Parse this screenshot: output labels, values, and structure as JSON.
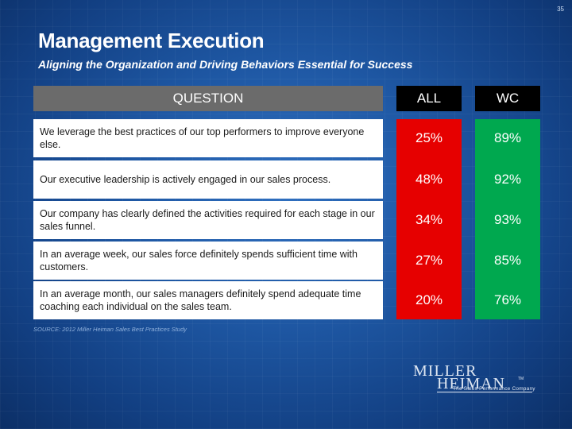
{
  "page_number": "35",
  "title": "Management Execution",
  "subtitle": "Aligning the Organization and Driving Behaviors Essential for Success",
  "headers": {
    "question": "QUESTION",
    "all": "ALL",
    "wc": "WC"
  },
  "rows": [
    {
      "question": "We leverage the best practices of our top performers to improve everyone else.",
      "all": "25%",
      "wc": "89%"
    },
    {
      "question": "Our executive leadership is actively engaged in our sales process.",
      "all": "48%",
      "wc": "92%"
    },
    {
      "question": "Our company has clearly defined the activities required for each stage in our sales funnel.",
      "all": "34%",
      "wc": "93%"
    },
    {
      "question": "In an average week, our sales force definitely spends sufficient time with customers.",
      "all": "27%",
      "wc": "85%"
    },
    {
      "question": "In an average month, our sales managers definitely spend adequate time coaching each individual on the sales team.",
      "all": "20%",
      "wc": "76%"
    }
  ],
  "source": "SOURCE: 2012 Miller Heiman Sales Best Practices Study",
  "logo": {
    "line1": "MILLER",
    "line2": "HEIMAN",
    "trademark": "TM",
    "tagline": "The Sales Performance Company"
  },
  "colors": {
    "all_column": "#e60000",
    "wc_column": "#00a84f",
    "question_header": "#6b6b6b",
    "background": "#1e57a3"
  }
}
